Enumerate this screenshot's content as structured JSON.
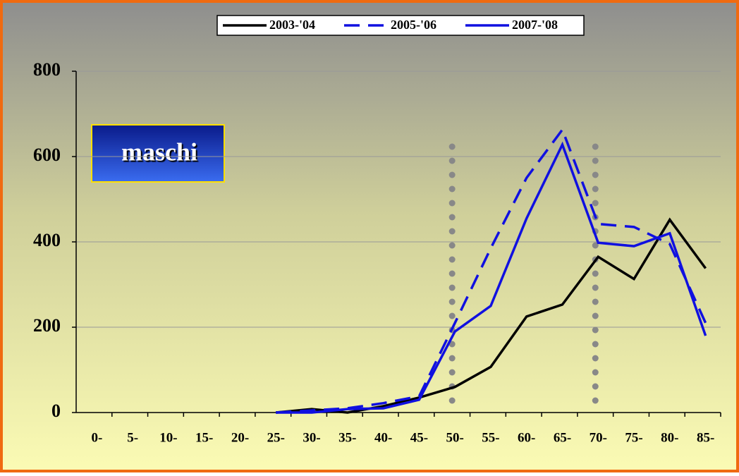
{
  "chart_data": {
    "type": "line",
    "annotation": "maschi",
    "categories": [
      "0-",
      "5-",
      "10-",
      "15-",
      "20-",
      "25-",
      "30-",
      "35-",
      "40-",
      "45-",
      "50-",
      "55-",
      "60-",
      "65-",
      "70-",
      "75-",
      "80-",
      "85-"
    ],
    "series": [
      {
        "name": "2003-'04",
        "color": "#000000",
        "dash": false,
        "values": [
          null,
          null,
          null,
          null,
          null,
          0,
          8,
          0,
          15,
          35,
          60,
          107,
          225,
          253,
          365,
          313,
          452,
          338
        ]
      },
      {
        "name": "2005-'06",
        "color": "#1010e0",
        "dash": true,
        "values": [
          null,
          null,
          null,
          null,
          null,
          0,
          5,
          10,
          22,
          38,
          210,
          385,
          550,
          663,
          442,
          435,
          395,
          210
        ]
      },
      {
        "name": "2007-'08",
        "color": "#1010e0",
        "dash": false,
        "values": [
          null,
          null,
          null,
          null,
          null,
          0,
          0,
          8,
          10,
          30,
          190,
          250,
          455,
          628,
          398,
          390,
          420,
          180
        ]
      }
    ],
    "ylim": [
      0,
      800
    ],
    "yticks": [
      0,
      200,
      400,
      600,
      800
    ],
    "grid": true,
    "legend": "top"
  }
}
